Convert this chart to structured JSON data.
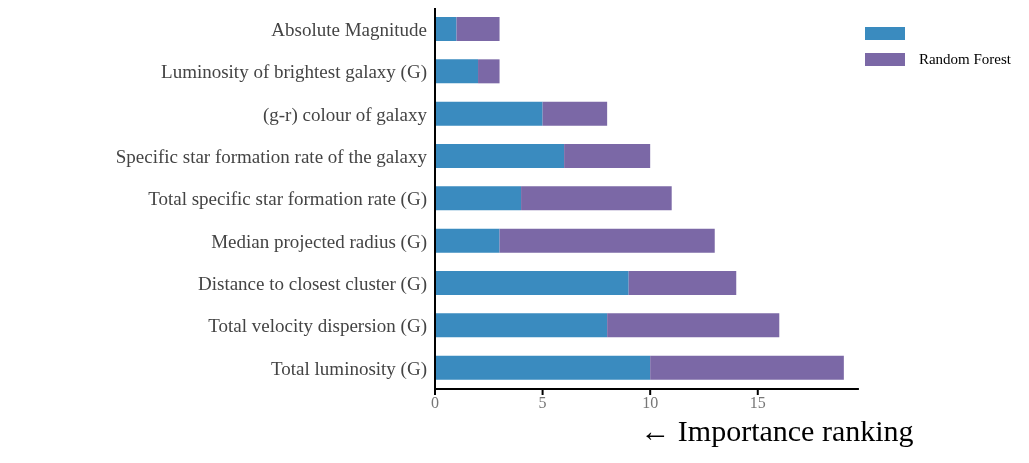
{
  "chart_data": {
    "type": "bar",
    "orientation": "horizontal",
    "stacked": true,
    "xlabel": "← Importance ranking",
    "categories": [
      "Absolute Magnitude",
      "Luminosity of brightest galaxy (G)",
      "(g-r) colour of galaxy",
      "Specific star formation rate of the galaxy",
      "Total specific star formation rate (G)",
      "Median projected radius (G)",
      "Distance to closest cluster (G)",
      "Total velocity dispersion (G)",
      "Total luminosity (G)"
    ],
    "series": [
      {
        "color": "#3a8bbf",
        "values": [
          1,
          2,
          5,
          6,
          4,
          3,
          9,
          8,
          10
        ]
      },
      {
        "name": "Random Forest",
        "color": "#7b68a6",
        "values": [
          2,
          1,
          3,
          4,
          7,
          10,
          5,
          8,
          9
        ]
      }
    ],
    "xlim": [
      0,
      19.7
    ],
    "xticks": [
      0,
      5,
      10,
      15
    ],
    "grid": false,
    "legend": "top right"
  }
}
